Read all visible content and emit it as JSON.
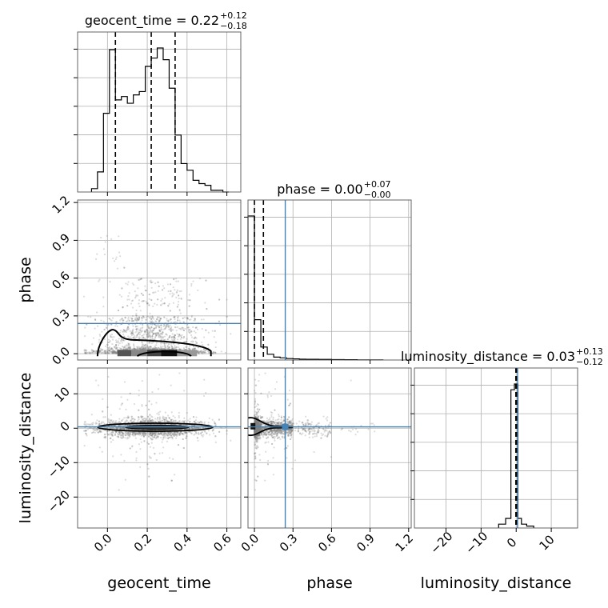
{
  "chart_data": {
    "type": "corner",
    "parameters": [
      "geocent_time",
      "phase",
      "luminosity_distance"
    ],
    "injection": {
      "phase": 0.24,
      "luminosity_distance": 0.4
    },
    "colors": {
      "hist": "#000000",
      "truth": "#4682b4",
      "grid": "#b0b0b0",
      "scatter": "#808080"
    },
    "grid": true,
    "titles": [
      {
        "param": "geocent_time",
        "label": "geocent_time = 0.22",
        "sup": "+0.12",
        "sub": "−0.18"
      },
      {
        "param": "phase",
        "label": "phase = 0.00",
        "sup": "+0.07",
        "sub": "−0.00"
      },
      {
        "param": "luminosity_distance",
        "label": "luminosity_distance = 0.03",
        "sup": "+0.13",
        "sub": "−0.12"
      }
    ],
    "axes": {
      "geocent_time": {
        "range": [
          -0.15,
          0.67
        ],
        "ticks": [
          0.0,
          0.2,
          0.4,
          0.6
        ],
        "tick_labels": [
          "0.0",
          "0.2",
          "0.4",
          "0.6"
        ],
        "xlabel": "geocent_time"
      },
      "phase": {
        "range": [
          -0.05,
          1.22
        ],
        "ticks": [
          0.0,
          0.3,
          0.6,
          0.9,
          1.2
        ],
        "tick_labels": [
          "0.0",
          "0.3",
          "0.6",
          "0.9",
          "1.2"
        ],
        "xlabel": "phase",
        "ylabel": "phase"
      },
      "luminosity_distance": {
        "range": [
          -29,
          17.5
        ],
        "ticks": [
          -20,
          -10,
          0,
          10
        ],
        "tick_labels": [
          "−20",
          "−10",
          "0",
          "10"
        ],
        "xlabel": "luminosity_distance",
        "ylabel": "luminosity_distance"
      }
    },
    "histograms": {
      "geocent_time": {
        "bin_edges": [
          -0.08,
          -0.05,
          -0.02,
          0.01,
          0.04,
          0.07,
          0.1,
          0.13,
          0.16,
          0.19,
          0.22,
          0.25,
          0.28,
          0.31,
          0.34,
          0.37,
          0.4,
          0.43,
          0.46,
          0.49,
          0.52,
          0.55,
          0.58,
          0.61
        ],
        "counts": [
          2,
          12,
          47,
          85,
          55,
          57,
          53,
          58,
          60,
          75,
          80,
          86,
          79,
          62,
          34,
          17,
          13,
          7,
          5,
          4,
          1,
          1,
          0
        ],
        "quantiles": [
          0.04,
          0.22,
          0.34
        ]
      },
      "phase": {
        "bin_edges": [
          -0.05,
          0.0,
          0.05,
          0.1,
          0.15,
          0.2,
          0.25,
          0.3,
          0.35,
          0.4,
          0.5,
          0.6,
          0.7,
          0.8,
          0.9,
          1.0
        ],
        "counts": [
          100,
          28,
          9,
          4,
          2,
          1.5,
          1,
          0.8,
          0.6,
          0.5,
          0.4,
          0.3,
          0.2,
          0.1,
          0.1
        ],
        "quantiles": [
          0.0,
          0.07
        ]
      },
      "luminosity_distance": {
        "bin_edges": [
          -5,
          -3,
          -1.5,
          -0.5,
          0.5,
          1.5,
          3,
          5
        ],
        "counts": [
          2,
          5,
          72,
          75,
          5,
          2,
          1
        ],
        "quantiles": [
          -0.09,
          0.03,
          0.16
        ]
      }
    }
  }
}
